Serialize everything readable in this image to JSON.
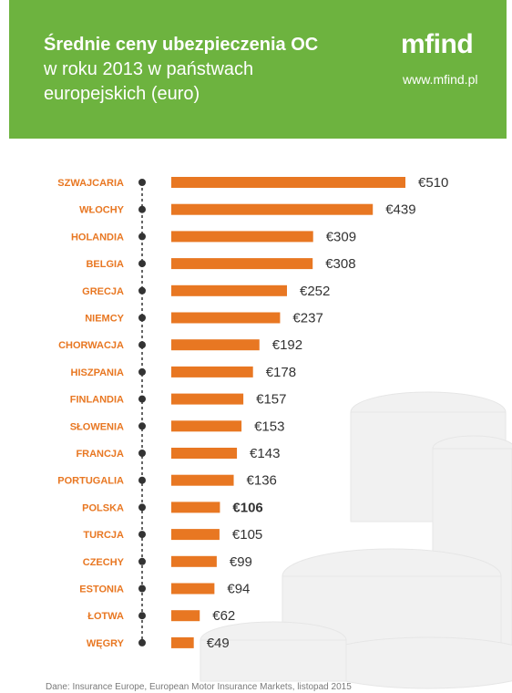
{
  "header": {
    "title_line1": "Średnie ceny ubezpieczenia OC",
    "title_line2": "w roku 2013 w państwach",
    "title_line3": "europejskich (euro)",
    "brand": "mfind",
    "url": "www.mfind.pl"
  },
  "footer_note": "Dane: Insurance Europe, European Motor Insurance Markets, listopad 2015",
  "colors": {
    "header_bg": "#6db33f",
    "bar": "#e87722",
    "label": "#e87722",
    "value_text": "#333333",
    "axis_line": "#333333"
  },
  "chart_data": {
    "type": "bar",
    "orientation": "horizontal",
    "currency_prefix": "€",
    "highlight": "POLSKA",
    "categories": [
      "SZWAJCARIA",
      "WŁOCHY",
      "HOLANDIA",
      "BELGIA",
      "GRECJA",
      "NIEMCY",
      "CHORWACJA",
      "HISZPANIA",
      "FINLANDIA",
      "SŁOWENIA",
      "FRANCJA",
      "PORTUGALIA",
      "POLSKA",
      "TURCJA",
      "CZECHY",
      "ESTONIA",
      "ŁOTWA",
      "WĘGRY"
    ],
    "values": [
      510,
      439,
      309,
      308,
      252,
      237,
      192,
      178,
      157,
      153,
      143,
      136,
      106,
      105,
      99,
      94,
      62,
      49
    ],
    "value_labels": [
      "€510",
      "€439",
      "€309",
      "€308",
      "€252",
      "€237",
      "€192",
      "€178",
      "€157",
      "€153",
      "€143",
      "€136",
      "€106",
      "€105",
      "€99",
      "€94",
      "€62",
      "€49"
    ],
    "xlim": [
      0,
      510
    ],
    "grid": false,
    "legend": "none"
  }
}
